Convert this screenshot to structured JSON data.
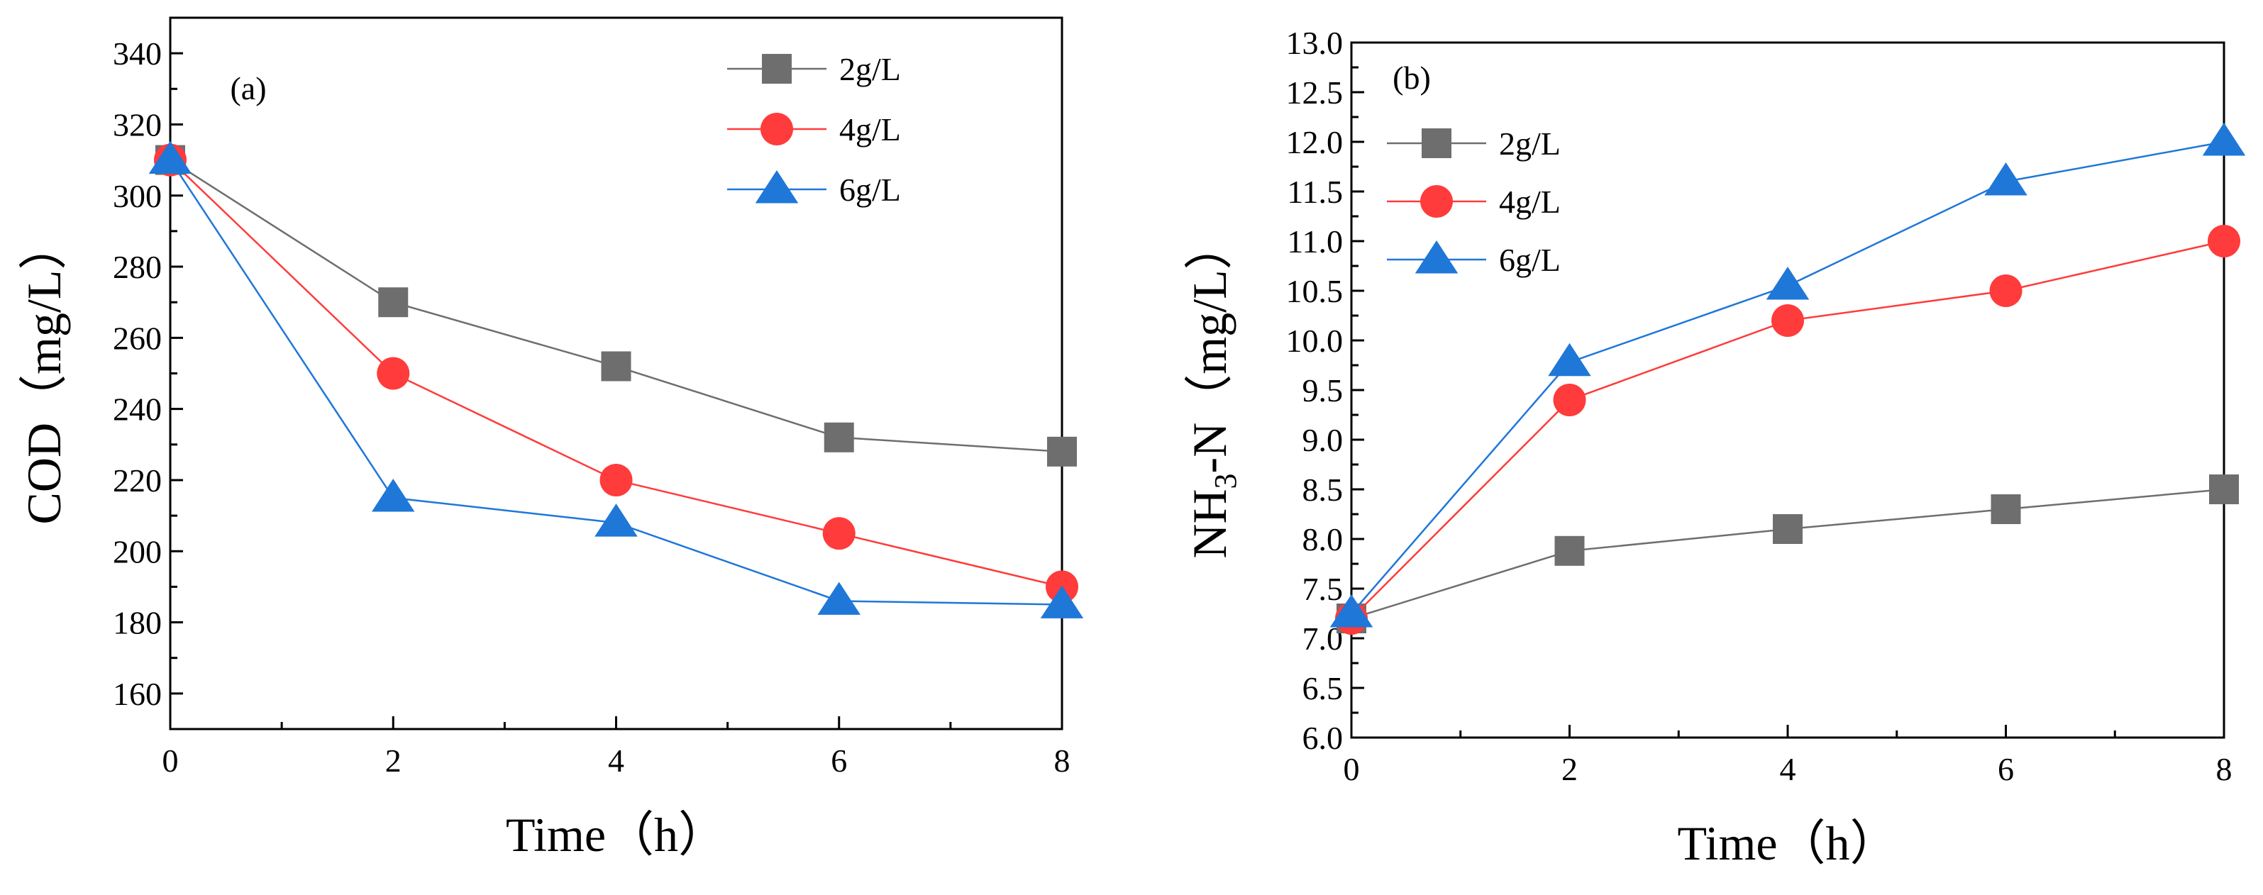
{
  "chart_data": [
    {
      "type": "line",
      "panel_label": "(a)",
      "xlabel": "Time（h）",
      "ylabel": "COD（mg/L）",
      "xlim": [
        0,
        8
      ],
      "ylim": [
        150,
        350
      ],
      "xticks": [
        0,
        2,
        4,
        6,
        8
      ],
      "yticks": [
        160,
        180,
        200,
        220,
        240,
        260,
        280,
        300,
        320,
        340
      ],
      "x": [
        0,
        2,
        4,
        6,
        8
      ],
      "legend_position": "top-right",
      "series": [
        {
          "name": "2g/L",
          "color": "#6e6e6e",
          "marker": "square",
          "values": [
            310,
            270,
            252,
            232,
            228
          ]
        },
        {
          "name": "4g/L",
          "color": "#ff3b3b",
          "marker": "circle",
          "values": [
            310,
            250,
            220,
            205,
            190
          ]
        },
        {
          "name": "6g/L",
          "color": "#1f77d8",
          "marker": "triangle",
          "values": [
            310,
            215,
            208,
            186,
            185
          ]
        }
      ]
    },
    {
      "type": "line",
      "panel_label": "(b)",
      "xlabel": "Time（h）",
      "ylabel_main": "NH",
      "ylabel_sub": "3",
      "ylabel_rest": "-N（mg/L）",
      "xlim": [
        0,
        8
      ],
      "ylim": [
        6.0,
        13.0
      ],
      "xticks": [
        0,
        2,
        4,
        6,
        8
      ],
      "yticks": [
        "6.0",
        "6.5",
        "7.0",
        "7.5",
        "8.0",
        "8.5",
        "9.0",
        "9.5",
        "10.0",
        "10.5",
        "11.0",
        "11.5",
        "12.0",
        "12.5",
        "13.0"
      ],
      "x": [
        0,
        2,
        4,
        6,
        8
      ],
      "legend_position": "top-left",
      "series": [
        {
          "name": "2g/L",
          "color": "#6e6e6e",
          "marker": "square",
          "values": [
            7.2,
            7.88,
            8.1,
            8.3,
            8.5
          ]
        },
        {
          "name": "4g/L",
          "color": "#ff3b3b",
          "marker": "circle",
          "values": [
            7.2,
            9.4,
            10.2,
            10.5,
            11.0
          ]
        },
        {
          "name": "6g/L",
          "color": "#1f77d8",
          "marker": "triangle",
          "values": [
            7.25,
            9.78,
            10.55,
            11.6,
            12.0
          ]
        }
      ]
    }
  ]
}
